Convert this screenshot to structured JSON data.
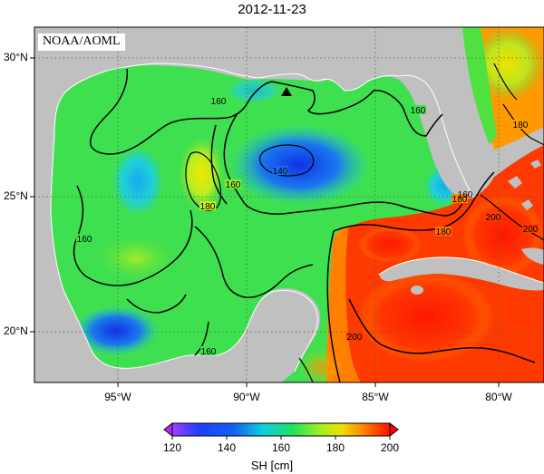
{
  "title": "2012-11-23",
  "source_label": "NOAA/AOML",
  "lat_labels": [
    "30°N",
    "25°N",
    "20°N"
  ],
  "lon_labels": [
    "95°W",
    "90°W",
    "85°W",
    "80°W"
  ],
  "contour_labels": [
    "160",
    "160",
    "140",
    "160",
    "180",
    "160",
    "160",
    "180",
    "180",
    "200",
    "180",
    "200",
    "200",
    "160"
  ],
  "colorbar": {
    "ticks": [
      "120",
      "140",
      "160",
      "180",
      "200"
    ],
    "title": "SH [cm]"
  },
  "colors": {
    "land": "#c0c0c0",
    "low": "#1a3cff",
    "mid": "#1ed25a",
    "high": "#ff2a00"
  },
  "marker": "triangle-marker"
}
